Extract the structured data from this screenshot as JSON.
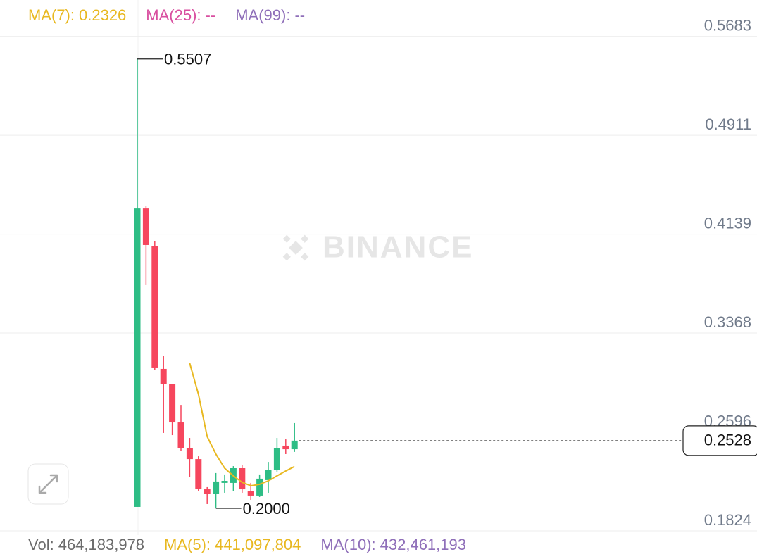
{
  "chart_data": {
    "type": "candlestick",
    "watermark": "BINANCE",
    "open": [
      0.2011,
      0.434,
      0.4044,
      0.3088,
      0.2967,
      0.267,
      0.2467,
      0.2384,
      0.2148,
      0.211,
      0.2198,
      0.2198,
      0.2313,
      0.2132,
      0.2099,
      0.222,
      0.2297,
      0.2489,
      0.2461
    ],
    "high": [
      0.5507,
      0.4362,
      0.4088,
      0.3192,
      0.2967,
      0.2807,
      0.2549,
      0.2406,
      0.2165,
      0.2275,
      0.2264,
      0.2329,
      0.234,
      0.2198,
      0.2264,
      0.2362,
      0.2549,
      0.2538,
      0.2665
    ],
    "low": [
      0.2011,
      0.3742,
      0.3082,
      0.2588,
      0.2571,
      0.245,
      0.2242,
      0.2132,
      0.2033,
      0.2,
      0.2121,
      0.2132,
      0.2121,
      0.2066,
      0.2088,
      0.2121,
      0.2286,
      0.2423,
      0.244
    ],
    "close": [
      0.434,
      0.4055,
      0.3099,
      0.2967,
      0.267,
      0.2467,
      0.2384,
      0.2148,
      0.211,
      0.2209,
      0.2214,
      0.2313,
      0.2148,
      0.2099,
      0.2231,
      0.2297,
      0.2472,
      0.2461,
      0.2528
    ],
    "up_color": "#2ebd85",
    "down_color": "#f6465d",
    "ylim": [
      0.1791,
      0.5967
    ],
    "yticks": [
      0.1824,
      0.2596,
      0.3368,
      0.4139,
      0.4911,
      0.5683
    ],
    "grid": true,
    "last_price": 0.2528,
    "annotations": [
      {
        "value": 0.5507
      },
      {
        "value": 0.2,
        "label": "0.2000"
      }
    ],
    "series": [
      {
        "name": "MA(7):",
        "color": "#e8b820",
        "values": [
          null,
          null,
          null,
          null,
          null,
          null,
          0.3132,
          0.289,
          0.256,
          0.2423,
          0.2313,
          0.2253,
          0.2203,
          0.2176,
          0.2187,
          0.2214,
          0.2253,
          0.2291,
          0.2326
        ]
      },
      {
        "name": "MA(25):",
        "color": "#d94fa0",
        "value_label": "--"
      },
      {
        "name": "MA(99):",
        "color": "#8f6fb9",
        "value_label": "--"
      }
    ],
    "volume": [
      {
        "name": "Vol:",
        "color": "#6b6b6b",
        "value": 464183978,
        "value_label": "464,183,978"
      },
      {
        "name": "MA(5):",
        "color": "#e8b820",
        "value": 441097804,
        "value_label": "441,097,804"
      },
      {
        "name": "MA(10):",
        "color": "#8f6fb9",
        "value": 432461193,
        "value_label": "432,461,193"
      }
    ]
  }
}
